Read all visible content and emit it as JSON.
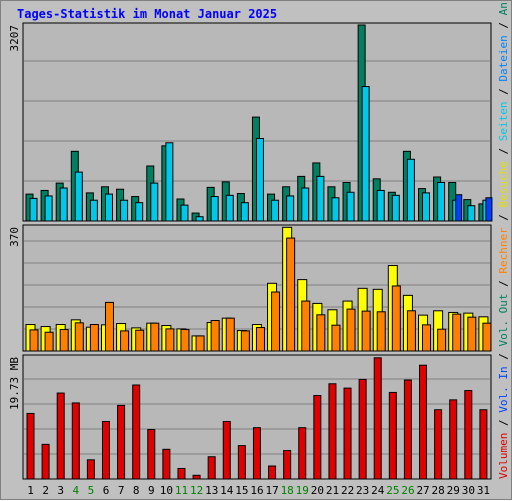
{
  "title": "Tages-Statistik im Monat Januar 2025",
  "colors": {
    "background": "#c0c0c0",
    "plot": "#b8b8b8",
    "grid": "#808080",
    "hits": "#008060",
    "files": "#00c8e8",
    "pages": "#0040ff",
    "visits": "#ffff00",
    "sites": "#ff8000",
    "volume": "#e00000",
    "weekend_label": "#008000",
    "weekday_label": "#000000"
  },
  "right_legend": {
    "top": [
      {
        "text": "Anfragen",
        "color": "#008060"
      },
      {
        "text": "/",
        "color": "#000000"
      },
      {
        "text": "Dateien",
        "color": "#0080ff"
      },
      {
        "text": "/",
        "color": "#000000"
      },
      {
        "text": "Seiten",
        "color": "#00c8e8"
      },
      {
        "text": "/",
        "color": "#000000"
      },
      {
        "text": "Besuche",
        "color": "#e0e000"
      },
      {
        "text": "/",
        "color": "#000000"
      },
      {
        "text": "Rechner",
        "color": "#ff8000"
      },
      {
        "text": "/",
        "color": "#000000"
      },
      {
        "text": "Vol. Out",
        "color": "#008060"
      },
      {
        "text": "/",
        "color": "#000000"
      },
      {
        "text": "Vol. In",
        "color": "#0040ff"
      },
      {
        "text": "/",
        "color": "#000000"
      },
      {
        "text": "Volumen",
        "color": "#e00000"
      }
    ]
  },
  "chart_data": [
    {
      "type": "bar",
      "panel": "hits-files-pages",
      "ymax_label": "3207",
      "ymax": 3207,
      "x": [
        1,
        2,
        3,
        4,
        5,
        6,
        7,
        8,
        9,
        10,
        11,
        12,
        13,
        14,
        15,
        16,
        17,
        18,
        19,
        20,
        21,
        22,
        23,
        24,
        25,
        26,
        27,
        28,
        29,
        30,
        31
      ],
      "series": [
        {
          "name": "Anfragen",
          "values": [
            440,
            500,
            620,
            1140,
            460,
            560,
            520,
            400,
            900,
            1230,
            360,
            130,
            550,
            640,
            450,
            1700,
            440,
            560,
            730,
            950,
            560,
            630,
            3207,
            690,
            470,
            1140,
            530,
            720,
            630,
            350,
            280
          ]
        },
        {
          "name": "Dateien",
          "values": [
            370,
            410,
            540,
            800,
            340,
            440,
            340,
            300,
            620,
            1280,
            260,
            70,
            400,
            420,
            300,
            1350,
            340,
            410,
            540,
            730,
            380,
            470,
            2200,
            500,
            420,
            1010,
            460,
            630,
            340,
            250,
            340
          ]
        },
        {
          "name": "Seiten",
          "values": [
            0,
            0,
            0,
            0,
            0,
            0,
            0,
            0,
            0,
            0,
            0,
            0,
            0,
            0,
            0,
            0,
            0,
            0,
            0,
            0,
            0,
            0,
            0,
            0,
            0,
            0,
            0,
            0,
            430,
            0,
            380
          ]
        }
      ]
    },
    {
      "type": "bar",
      "panel": "visits-sites",
      "ymax_label": "370",
      "ymax": 370,
      "x": [
        1,
        2,
        3,
        4,
        5,
        6,
        7,
        8,
        9,
        10,
        11,
        12,
        13,
        14,
        15,
        16,
        17,
        18,
        19,
        20,
        21,
        22,
        23,
        24,
        25,
        26,
        27,
        28,
        29,
        30,
        31
      ],
      "series": [
        {
          "name": "Besuche",
          "values": [
            79,
            73,
            79,
            93,
            71,
            78,
            82,
            69,
            83,
            76,
            66,
            45,
            85,
            98,
            61,
            79,
            202,
            369,
            213,
            142,
            123,
            149,
            187,
            184,
            255,
            166,
            107,
            120,
            115,
            113,
            102
          ]
        },
        {
          "name": "Rechner",
          "values": [
            63,
            56,
            64,
            84,
            79,
            145,
            60,
            62,
            83,
            66,
            64,
            45,
            91,
            98,
            60,
            70,
            176,
            337,
            149,
            108,
            77,
            125,
            119,
            117,
            194,
            120,
            78,
            65,
            110,
            101,
            83
          ]
        }
      ]
    },
    {
      "type": "bar",
      "panel": "volume",
      "ymax_label": "19.73 MB",
      "ymax": 19.73,
      "x": [
        1,
        2,
        3,
        4,
        5,
        6,
        7,
        8,
        9,
        10,
        11,
        12,
        13,
        14,
        15,
        16,
        17,
        18,
        19,
        20,
        21,
        22,
        23,
        24,
        25,
        26,
        27,
        28,
        29,
        30,
        31
      ],
      "series": [
        {
          "name": "Volumen",
          "values": [
            10.6,
            5.6,
            13.9,
            12.3,
            3.1,
            9.3,
            11.9,
            15.2,
            8.0,
            4.8,
            1.7,
            0.6,
            3.6,
            9.3,
            5.4,
            8.3,
            2.1,
            4.6,
            8.3,
            13.5,
            15.4,
            14.7,
            16.1,
            19.6,
            14.0,
            16.0,
            18.4,
            11.2,
            12.8,
            14.3,
            11.2
          ]
        }
      ]
    }
  ],
  "x_labels": [
    {
      "text": "1",
      "weekend": false
    },
    {
      "text": "2",
      "weekend": false
    },
    {
      "text": "3",
      "weekend": false
    },
    {
      "text": "4",
      "weekend": true
    },
    {
      "text": "5",
      "weekend": true
    },
    {
      "text": "6",
      "weekend": false
    },
    {
      "text": "7",
      "weekend": false
    },
    {
      "text": "8",
      "weekend": false
    },
    {
      "text": "9",
      "weekend": false
    },
    {
      "text": "10",
      "weekend": false
    },
    {
      "text": "11",
      "weekend": true
    },
    {
      "text": "12",
      "weekend": true
    },
    {
      "text": "13",
      "weekend": false
    },
    {
      "text": "14",
      "weekend": false
    },
    {
      "text": "15",
      "weekend": false
    },
    {
      "text": "16",
      "weekend": false
    },
    {
      "text": "17",
      "weekend": false
    },
    {
      "text": "18",
      "weekend": true
    },
    {
      "text": "19",
      "weekend": true
    },
    {
      "text": "20",
      "weekend": false
    },
    {
      "text": "21",
      "weekend": false
    },
    {
      "text": "22",
      "weekend": false
    },
    {
      "text": "23",
      "weekend": false
    },
    {
      "text": "24",
      "weekend": false
    },
    {
      "text": "25",
      "weekend": true
    },
    {
      "text": "26",
      "weekend": true
    },
    {
      "text": "27",
      "weekend": false
    },
    {
      "text": "28",
      "weekend": false
    },
    {
      "text": "29",
      "weekend": false
    },
    {
      "text": "30",
      "weekend": false
    },
    {
      "text": "31",
      "weekend": false
    }
  ]
}
